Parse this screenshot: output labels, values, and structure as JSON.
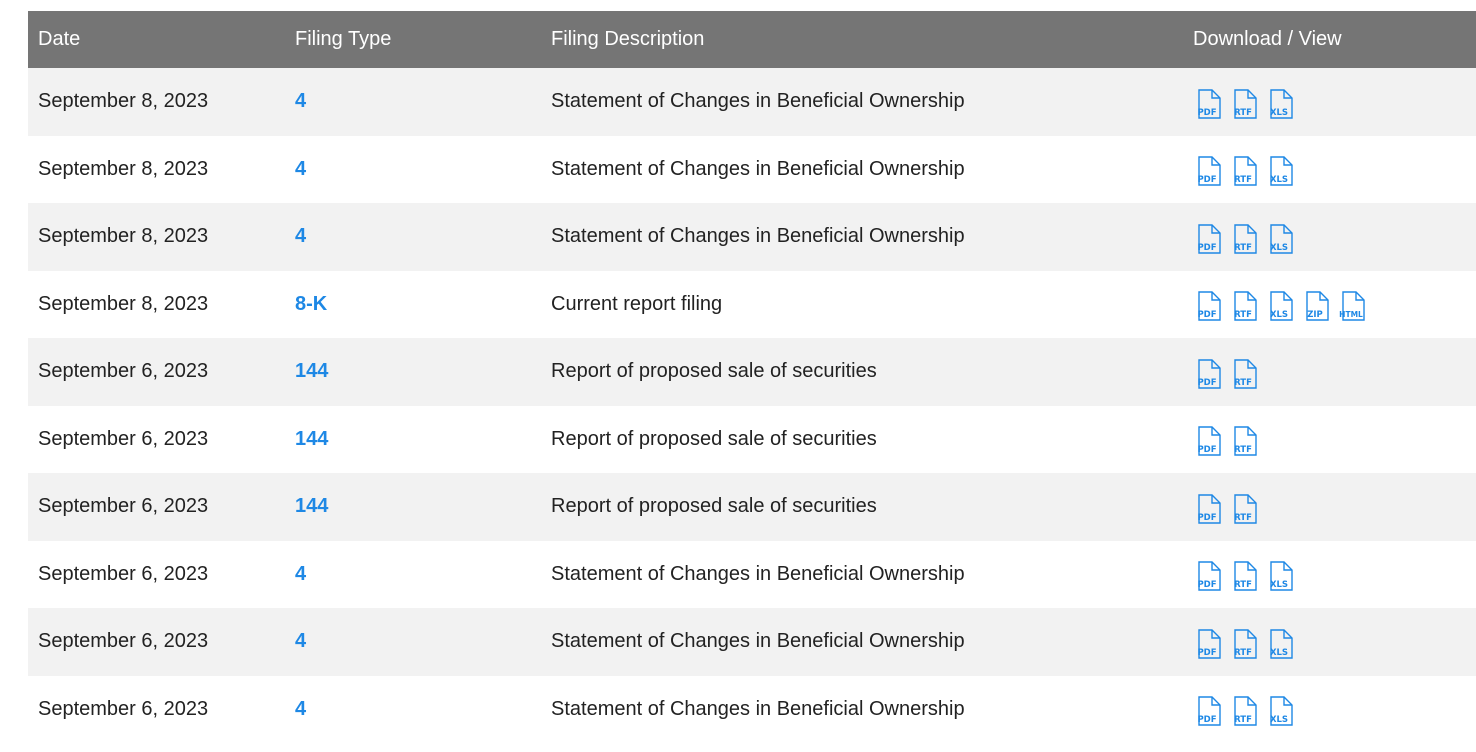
{
  "headers": {
    "date": "Date",
    "type": "Filing Type",
    "description": "Filing Description",
    "download": "Download / View"
  },
  "colors": {
    "header_bg": "#757575",
    "row_alt": "#f2f2f2",
    "link": "#1e88e5",
    "icon": "#1e88e5"
  },
  "rows": [
    {
      "date": "September 8, 2023",
      "type": "4",
      "description": "Statement of Changes in Beneficial Ownership",
      "files": [
        "PDF",
        "RTF",
        "XLS"
      ]
    },
    {
      "date": "September 8, 2023",
      "type": "4",
      "description": "Statement of Changes in Beneficial Ownership",
      "files": [
        "PDF",
        "RTF",
        "XLS"
      ]
    },
    {
      "date": "September 8, 2023",
      "type": "4",
      "description": "Statement of Changes in Beneficial Ownership",
      "files": [
        "PDF",
        "RTF",
        "XLS"
      ]
    },
    {
      "date": "September 8, 2023",
      "type": "8-K",
      "description": "Current report filing",
      "files": [
        "PDF",
        "RTF",
        "XLS",
        "ZIP",
        "HTML"
      ]
    },
    {
      "date": "September 6, 2023",
      "type": "144",
      "description": "Report of proposed sale of securities",
      "files": [
        "PDF",
        "RTF"
      ]
    },
    {
      "date": "September 6, 2023",
      "type": "144",
      "description": "Report of proposed sale of securities",
      "files": [
        "PDF",
        "RTF"
      ]
    },
    {
      "date": "September 6, 2023",
      "type": "144",
      "description": "Report of proposed sale of securities",
      "files": [
        "PDF",
        "RTF"
      ]
    },
    {
      "date": "September 6, 2023",
      "type": "4",
      "description": "Statement of Changes in Beneficial Ownership",
      "files": [
        "PDF",
        "RTF",
        "XLS"
      ]
    },
    {
      "date": "September 6, 2023",
      "type": "4",
      "description": "Statement of Changes in Beneficial Ownership",
      "files": [
        "PDF",
        "RTF",
        "XLS"
      ]
    },
    {
      "date": "September 6, 2023",
      "type": "4",
      "description": "Statement of Changes in Beneficial Ownership",
      "files": [
        "PDF",
        "RTF",
        "XLS"
      ]
    }
  ]
}
